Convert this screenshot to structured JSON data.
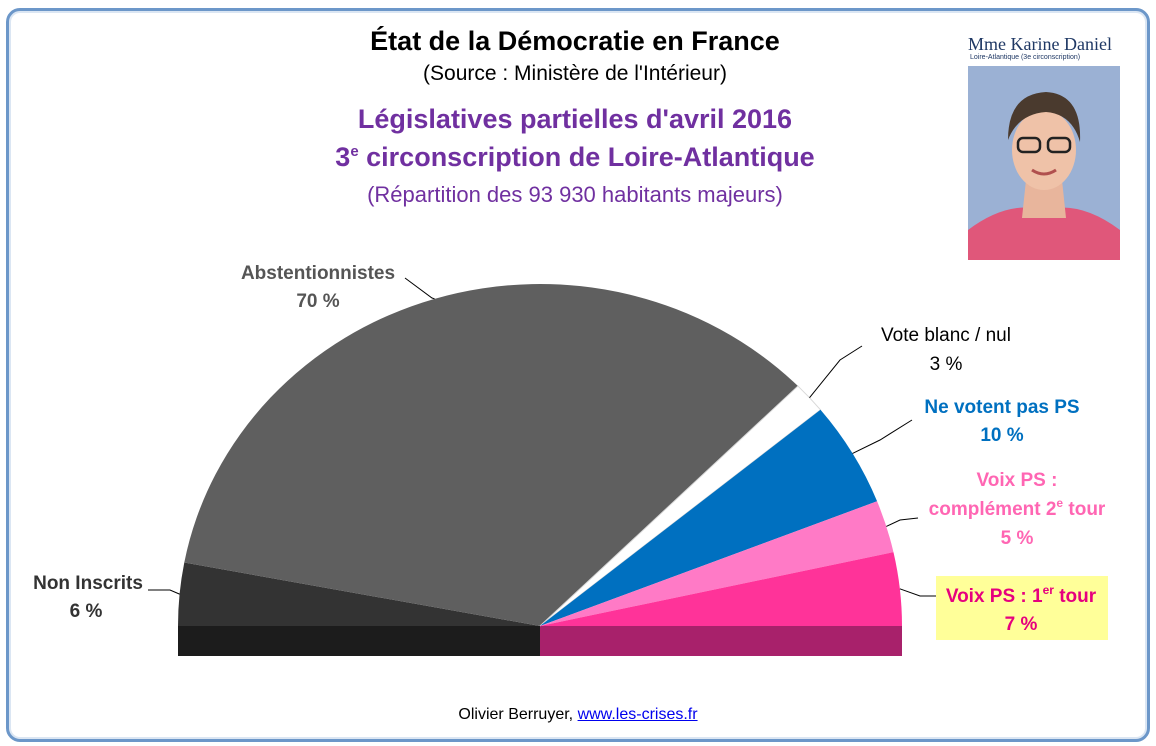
{
  "header": {
    "title": "État de la Démocratie  en France",
    "source": "(Source : Ministère de l'Intérieur)",
    "election": "Législatives partielles d'avril 2016",
    "circ_prefix": "3",
    "circ_sup": "e",
    "circ_rest": " circonscription  de Loire-Atlantique",
    "repartition": "(Répartition  des 93 930 habitants majeurs)"
  },
  "photo": {
    "name": "Mme Karine Daniel",
    "subtitle": "Loire-Atlantique (3e circonscription)"
  },
  "chart_data": {
    "type": "pie",
    "title": "Législatives partielles d'avril 2016",
    "categories": [
      "Non Inscrits",
      "Abstentionnistes",
      "Vote blanc / nul",
      "Ne votent pas PS",
      "Voix PS : complément 2e tour",
      "Voix PS : 1er tour"
    ],
    "values": [
      6,
      70,
      3,
      10,
      5,
      7
    ],
    "value_labels": [
      "6 %",
      "70 %",
      "3 %",
      "10 %",
      "5 %",
      "7 %"
    ],
    "colors": [
      "#333333",
      "#5f5f5f",
      "#ffffff",
      "#0070c0",
      "#ff7ac6",
      "#ff3399"
    ],
    "legend": "none"
  },
  "labels": {
    "non_inscrits": {
      "l1": "Non Inscrits",
      "l2": "6 %"
    },
    "abstention": {
      "l1": "Abstentionnistes",
      "l2": "70 %"
    },
    "blanc": {
      "l1": "Vote blanc / nul",
      "l2": "3 %"
    },
    "ne_votent": {
      "l1": "Ne votent pas PS",
      "l2": "10 %"
    },
    "complement": {
      "l1a": "Voix PS :",
      "l1b": "complément 2",
      "l1b_sup": "e",
      "l1b_end": " tour",
      "l2": "5 %"
    },
    "premier": {
      "l1a": "Voix PS : 1",
      "l1a_sup": "er",
      "l1a_end": " tour",
      "l2": "7 %"
    }
  },
  "footer": {
    "author": "Olivier Berruyer, ",
    "link": "www.les-crises.fr"
  }
}
